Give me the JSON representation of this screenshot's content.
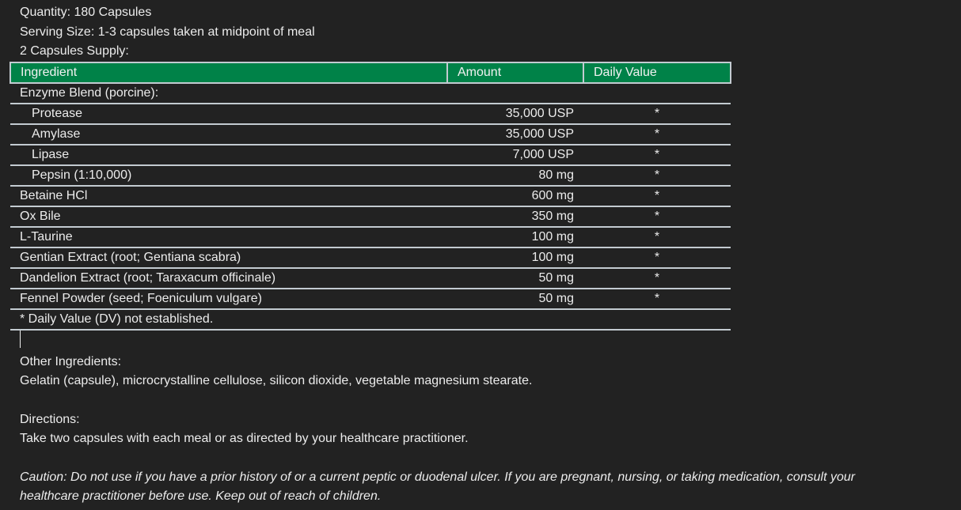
{
  "header": {
    "quantity": "Quantity: 180 Capsules",
    "serving": "Serving Size: 1-3 capsules taken at midpoint of meal",
    "supply": "2 Capsules Supply:"
  },
  "table": {
    "columns": [
      "Ingredient",
      "Amount",
      "Daily Value"
    ],
    "rows": [
      {
        "name": "Enzyme Blend (porcine):",
        "amount": "",
        "dv": "",
        "sub": false
      },
      {
        "name": "Protease",
        "amount": "35,000 USP",
        "dv": "*",
        "sub": true
      },
      {
        "name": "Amylase",
        "amount": "35,000 USP",
        "dv": "*",
        "sub": true
      },
      {
        "name": "Lipase",
        "amount": "7,000 USP",
        "dv": "*",
        "sub": true
      },
      {
        "name": "Pepsin (1:10,000)",
        "amount": "80 mg",
        "dv": "*",
        "sub": true
      },
      {
        "name": "Betaine HCl",
        "amount": "600 mg",
        "dv": "*",
        "sub": false
      },
      {
        "name": "Ox Bile",
        "amount": "350 mg",
        "dv": "*",
        "sub": false
      },
      {
        "name": "L-Taurine",
        "amount": "100 mg",
        "dv": "*",
        "sub": false
      },
      {
        "name": "Gentian Extract (root; Gentiana scabra)",
        "amount": "100 mg",
        "dv": "*",
        "sub": false
      },
      {
        "name": "Dandelion Extract (root; Taraxacum officinale)",
        "amount": "50 mg",
        "dv": "*",
        "sub": false
      },
      {
        "name": "Fennel Powder (seed; Foeniculum vulgare)",
        "amount": "50 mg",
        "dv": "*",
        "sub": false
      }
    ],
    "footnote": "* Daily Value (DV) not established."
  },
  "other": {
    "title": "Other Ingredients:",
    "text": "Gelatin (capsule), microcrystalline cellulose, silicon dioxide, vegetable magnesium stearate."
  },
  "directions": {
    "title": "Directions:",
    "text": "Take two capsules with each meal or as directed by your healthcare practitioner."
  },
  "caution": {
    "line1": "Caution: Do not use if you have a prior history of or a current peptic or duodenal ulcer. If you are pregnant, nursing, or taking medication, consult your",
    "line2": "healthcare practitioner before use. Keep out of reach of children."
  },
  "colors": {
    "header_bg": "#008248",
    "background": "#222222"
  }
}
